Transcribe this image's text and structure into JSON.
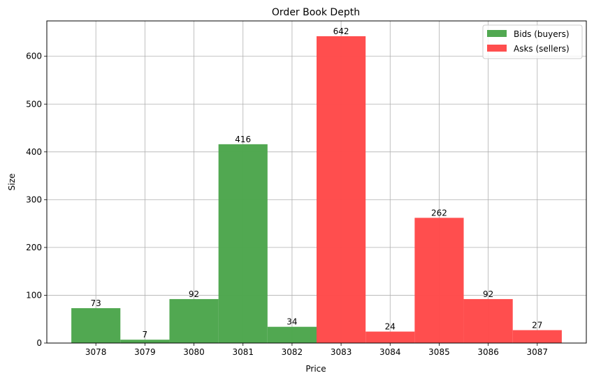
{
  "chart_data": {
    "type": "bar",
    "title": "Order Book Depth",
    "xlabel": "Price",
    "ylabel": "Size",
    "x_ticks": [
      3078,
      3079,
      3080,
      3081,
      3082,
      3083,
      3084,
      3085,
      3086,
      3087
    ],
    "y_ticks": [
      0,
      100,
      200,
      300,
      400,
      500,
      600
    ],
    "xlim": [
      3077.0,
      3088.0
    ],
    "ylim": [
      0,
      674
    ],
    "grid": true,
    "legend_position": "top-right",
    "series": [
      {
        "name": "Bids (buyers)",
        "color": "#4ea64e",
        "x": [
          3078,
          3079,
          3080,
          3081,
          3082
        ],
        "values": [
          73,
          7,
          92,
          416,
          34
        ]
      },
      {
        "name": "Asks (sellers)",
        "color": "#ff4a4a",
        "x": [
          3083,
          3084,
          3085,
          3086,
          3087
        ],
        "values": [
          642,
          24,
          262,
          92,
          27
        ]
      }
    ]
  }
}
